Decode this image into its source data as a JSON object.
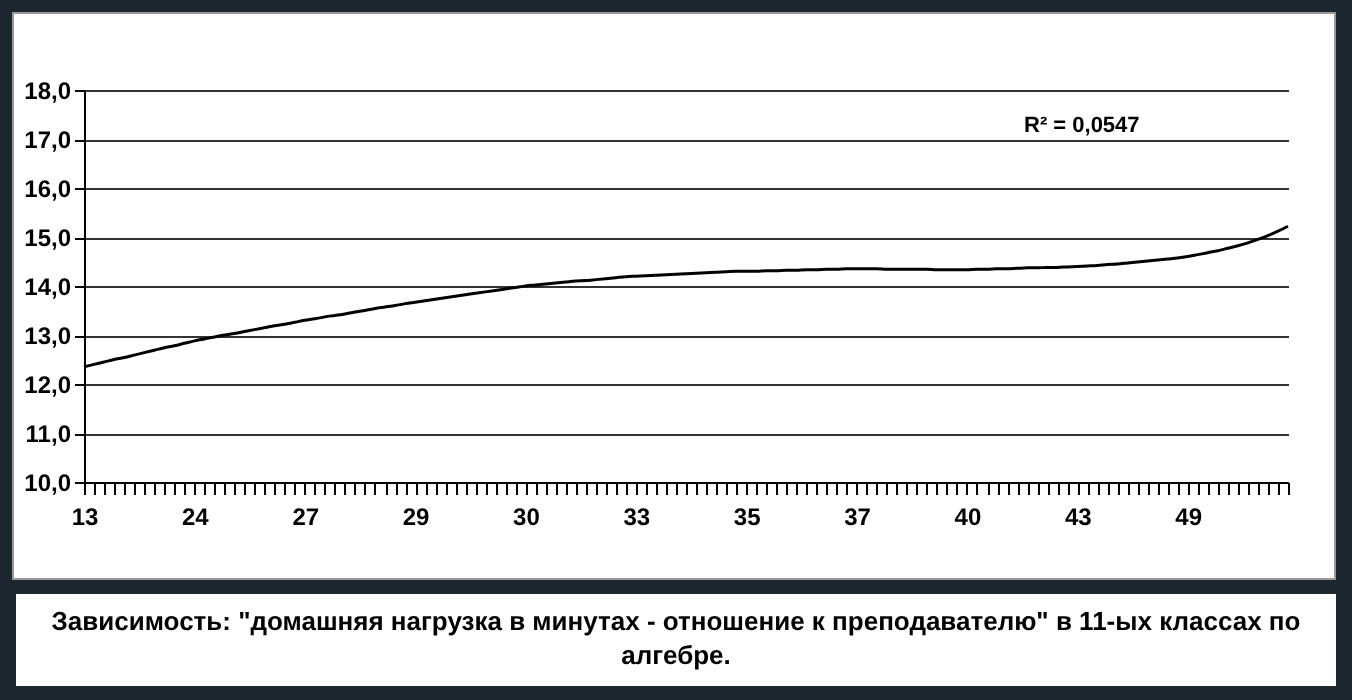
{
  "chart_data": {
    "type": "line",
    "categories": [
      "13",
      null,
      null,
      null,
      null,
      null,
      null,
      null,
      null,
      null,
      null,
      "24",
      null,
      null,
      null,
      null,
      null,
      null,
      null,
      null,
      null,
      null,
      "27",
      null,
      null,
      null,
      null,
      null,
      null,
      null,
      null,
      null,
      null,
      "29",
      null,
      null,
      null,
      null,
      null,
      null,
      null,
      null,
      null,
      null,
      "30",
      null,
      null,
      null,
      null,
      null,
      null,
      null,
      null,
      null,
      null,
      "33",
      null,
      null,
      null,
      null,
      null,
      null,
      null,
      null,
      null,
      null,
      "35",
      null,
      null,
      null,
      null,
      null,
      null,
      null,
      null,
      null,
      null,
      "37",
      null,
      null,
      null,
      null,
      null,
      null,
      null,
      null,
      null,
      null,
      "40",
      null,
      null,
      null,
      null,
      null,
      null,
      null,
      null,
      null,
      null,
      "43",
      null,
      null,
      null,
      null,
      null,
      null,
      null,
      null,
      null,
      null,
      "49",
      null,
      null,
      null,
      null,
      null,
      null,
      null,
      null,
      null,
      null
    ],
    "series": [
      {
        "color": "#000000",
        "values": [
          12.35,
          12.4,
          12.45,
          12.5,
          12.54,
          12.59,
          12.64,
          12.69,
          12.74,
          12.78,
          12.83,
          12.88,
          12.92,
          12.96,
          13.0,
          13.03,
          13.07,
          13.11,
          13.15,
          13.19,
          13.22,
          13.26,
          13.3,
          13.33,
          13.37,
          13.4,
          13.43,
          13.47,
          13.5,
          13.54,
          13.57,
          13.6,
          13.64,
          13.67,
          13.7,
          13.73,
          13.76,
          13.79,
          13.82,
          13.85,
          13.88,
          13.91,
          13.94,
          13.97,
          14.0,
          14.02,
          14.04,
          14.06,
          14.08,
          14.1,
          14.11,
          14.13,
          14.15,
          14.17,
          14.19,
          14.2,
          14.21,
          14.22,
          14.23,
          14.24,
          14.25,
          14.26,
          14.27,
          14.28,
          14.29,
          14.3,
          14.3,
          14.3,
          14.31,
          14.31,
          14.32,
          14.32,
          14.33,
          14.33,
          14.34,
          14.34,
          14.35,
          14.35,
          14.35,
          14.35,
          14.34,
          14.34,
          14.34,
          14.34,
          14.34,
          14.33,
          14.33,
          14.33,
          14.33,
          14.34,
          14.34,
          14.35,
          14.35,
          14.36,
          14.37,
          14.37,
          14.38,
          14.38,
          14.39,
          14.4,
          14.41,
          14.42,
          14.44,
          14.45,
          14.47,
          14.49,
          14.51,
          14.53,
          14.55,
          14.57,
          14.6,
          14.64,
          14.68,
          14.72,
          14.77,
          14.82,
          14.88,
          14.95,
          15.03,
          15.12,
          15.22
        ]
      }
    ],
    "ylim": [
      10,
      18
    ],
    "yticks": [
      {
        "value": 10,
        "label": "10,0"
      },
      {
        "value": 11,
        "label": "11,0"
      },
      {
        "value": 12,
        "label": "12,0"
      },
      {
        "value": 13,
        "label": "13,0"
      },
      {
        "value": 14,
        "label": "14,0"
      },
      {
        "value": 15,
        "label": "15,0"
      },
      {
        "value": 16,
        "label": "16,0"
      },
      {
        "value": 17,
        "label": "17,0"
      },
      {
        "value": 18,
        "label": "18,0"
      }
    ],
    "grid": "y",
    "marker": "none",
    "line_style": "solid",
    "annotations": [
      "R² = 0,0547",
      "Зависимость: \"домашняя нагрузка в минутах - отношение к преподавателю\" в 11-ых классах по алгебре."
    ]
  }
}
